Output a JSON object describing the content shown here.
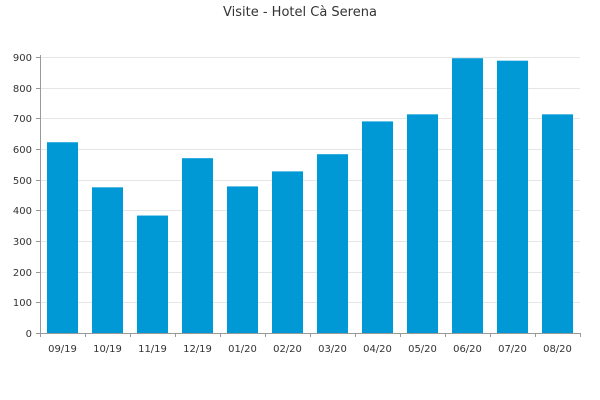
{
  "chart_data": {
    "type": "bar",
    "title": "Visite - Hotel Cà Serena",
    "xlabel": "",
    "ylabel": "",
    "categories": [
      "09/19",
      "10/19",
      "11/19",
      "12/19",
      "01/20",
      "02/20",
      "03/20",
      "04/20",
      "05/20",
      "06/20",
      "07/20",
      "08/20"
    ],
    "values": [
      622,
      475,
      383,
      570,
      478,
      527,
      583,
      690,
      713,
      896,
      888,
      713
    ],
    "ylim": [
      0,
      900
    ],
    "yticks": [
      0,
      100,
      200,
      300,
      400,
      500,
      600,
      700,
      800,
      900
    ],
    "grid": true,
    "bar_color": "#0099d6",
    "grid_color": "#e6e6e6",
    "axis_color": "#999999"
  }
}
